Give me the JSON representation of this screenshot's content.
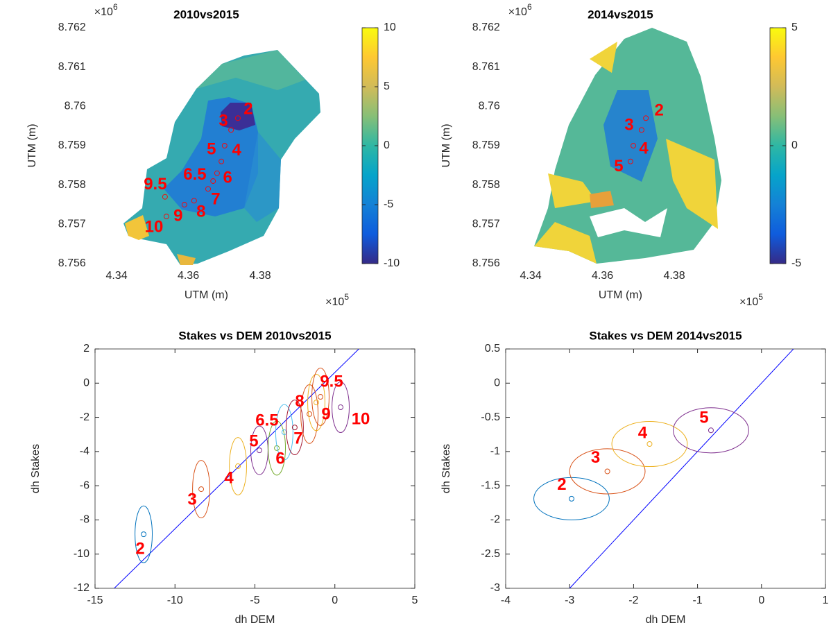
{
  "chart_data": [
    {
      "type": "map",
      "title": "2010vs2015",
      "xlabel": "UTM (m)",
      "ylabel": "UTM (m)",
      "x_multiplier": "×10",
      "x_exponent": "5",
      "y_multiplier": "×10",
      "y_exponent": "6",
      "xlim": [
        4.333,
        4.397
      ],
      "ylim": [
        8.756,
        8.762
      ],
      "xticks": [
        4.34,
        4.36,
        4.38
      ],
      "yticks": [
        8.756,
        8.757,
        8.758,
        8.759,
        8.76,
        8.761,
        8.762
      ],
      "colormap": "parula",
      "colorbar": {
        "clim": [
          -10,
          10
        ],
        "ticks": [
          -10,
          -5,
          0,
          5,
          10
        ]
      },
      "stakes": {
        "color": "#ff0000",
        "labels": [
          "2",
          "3",
          "5",
          "4",
          "6.5",
          "6",
          "7",
          "8",
          "9",
          "9.5",
          "10"
        ],
        "x": [
          4.3738,
          4.3719,
          4.3701,
          4.3692,
          4.368,
          4.3669,
          4.3655,
          4.3616,
          4.3589,
          4.3535,
          4.3539
        ],
        "y": [
          8.7597,
          8.7594,
          8.759,
          8.7586,
          8.7583,
          8.7581,
          8.7579,
          8.7576,
          8.7575,
          8.7577,
          8.7572
        ]
      }
    },
    {
      "type": "map",
      "title": "2014vs2015",
      "xlabel": "UTM (m)",
      "ylabel": "UTM (m)",
      "x_multiplier": "×10",
      "x_exponent": "5",
      "y_multiplier": "×10",
      "y_exponent": "6",
      "xlim": [
        4.333,
        4.397
      ],
      "ylim": [
        8.756,
        8.762
      ],
      "xticks": [
        4.34,
        4.36,
        4.38
      ],
      "yticks": [
        8.756,
        8.757,
        8.758,
        8.759,
        8.76,
        8.761,
        8.762
      ],
      "colormap": "parula",
      "colorbar": {
        "clim": [
          -5,
          5
        ],
        "ticks": [
          -5,
          0,
          5
        ]
      },
      "stakes": {
        "color": "#ff0000",
        "labels": [
          "2",
          "3",
          "4",
          "5"
        ],
        "x": [
          4.3721,
          4.3709,
          4.3686,
          4.3678
        ],
        "y": [
          8.7597,
          8.7594,
          8.759,
          8.7586
        ]
      }
    },
    {
      "type": "scatter",
      "title": "Stakes vs DEM 2010vs2015",
      "xlabel": "dh DEM",
      "ylabel": "dh Stakes",
      "xlim": [
        -15,
        5
      ],
      "ylim": [
        -12,
        2
      ],
      "xticks": [
        -15,
        -10,
        -5,
        0,
        5
      ],
      "yticks": [
        -12,
        -10,
        -8,
        -6,
        -4,
        -2,
        0,
        2
      ],
      "label_color": "#ff0000",
      "points": {
        "labels": [
          "2",
          "3",
          "4",
          "5",
          "6",
          "6.5",
          "7",
          "8",
          "9",
          "9.5",
          "10"
        ],
        "x": [
          -11.96,
          -8.36,
          -6.06,
          -4.72,
          -3.63,
          -3.16,
          -2.51,
          -1.59,
          -1.16,
          -0.9,
          0.36
        ],
        "y": [
          -8.84,
          -6.2,
          -4.86,
          -3.93,
          -3.8,
          -2.87,
          -2.59,
          -1.81,
          -1.13,
          -0.8,
          -1.41
        ],
        "xerr": [
          0.54,
          0.54,
          0.54,
          0.54,
          0.54,
          0.54,
          0.54,
          0.54,
          0.54,
          0.54,
          0.54
        ],
        "yerr": [
          1.66,
          1.68,
          1.68,
          1.42,
          1.58,
          1.62,
          1.6,
          1.72,
          1.65,
          1.68,
          1.48
        ],
        "colors": [
          "#0072bd",
          "#d95319",
          "#edb120",
          "#7e2f8e",
          "#77ac30",
          "#4dbeee",
          "#a2142f",
          "#d95319",
          "#edb120",
          "#d95319",
          "#7e2f8e"
        ]
      },
      "line": {
        "color": "#0000ff",
        "x": [
          -13.8,
          1.5
        ],
        "y": [
          -12,
          2
        ]
      }
    },
    {
      "type": "scatter",
      "title": "Stakes vs DEM 2014vs2015",
      "xlabel": "dh DEM",
      "ylabel": "dh Stakes",
      "xlim": [
        -4,
        1
      ],
      "ylim": [
        -3,
        0.5
      ],
      "xticks": [
        -4,
        -3,
        -2,
        -1,
        0,
        1
      ],
      "yticks": [
        -3,
        -2.5,
        -2,
        -1.5,
        -1,
        -0.5,
        0,
        0.5
      ],
      "label_color": "#ff0000",
      "points": {
        "labels": [
          "2",
          "3",
          "4",
          "5"
        ],
        "x": [
          -2.97,
          -2.41,
          -1.75,
          -0.79
        ],
        "y": [
          -1.69,
          -1.29,
          -0.89,
          -0.69
        ],
        "xerr": [
          0.59,
          0.59,
          0.59,
          0.59
        ],
        "yerr": [
          0.31,
          0.33,
          0.33,
          0.33
        ],
        "colors": [
          "#0072bd",
          "#d95319",
          "#edb120",
          "#7e2f8e"
        ]
      },
      "line": {
        "color": "#0000ff",
        "x": [
          -3,
          0.5
        ],
        "y": [
          -3,
          0.5
        ]
      }
    }
  ]
}
